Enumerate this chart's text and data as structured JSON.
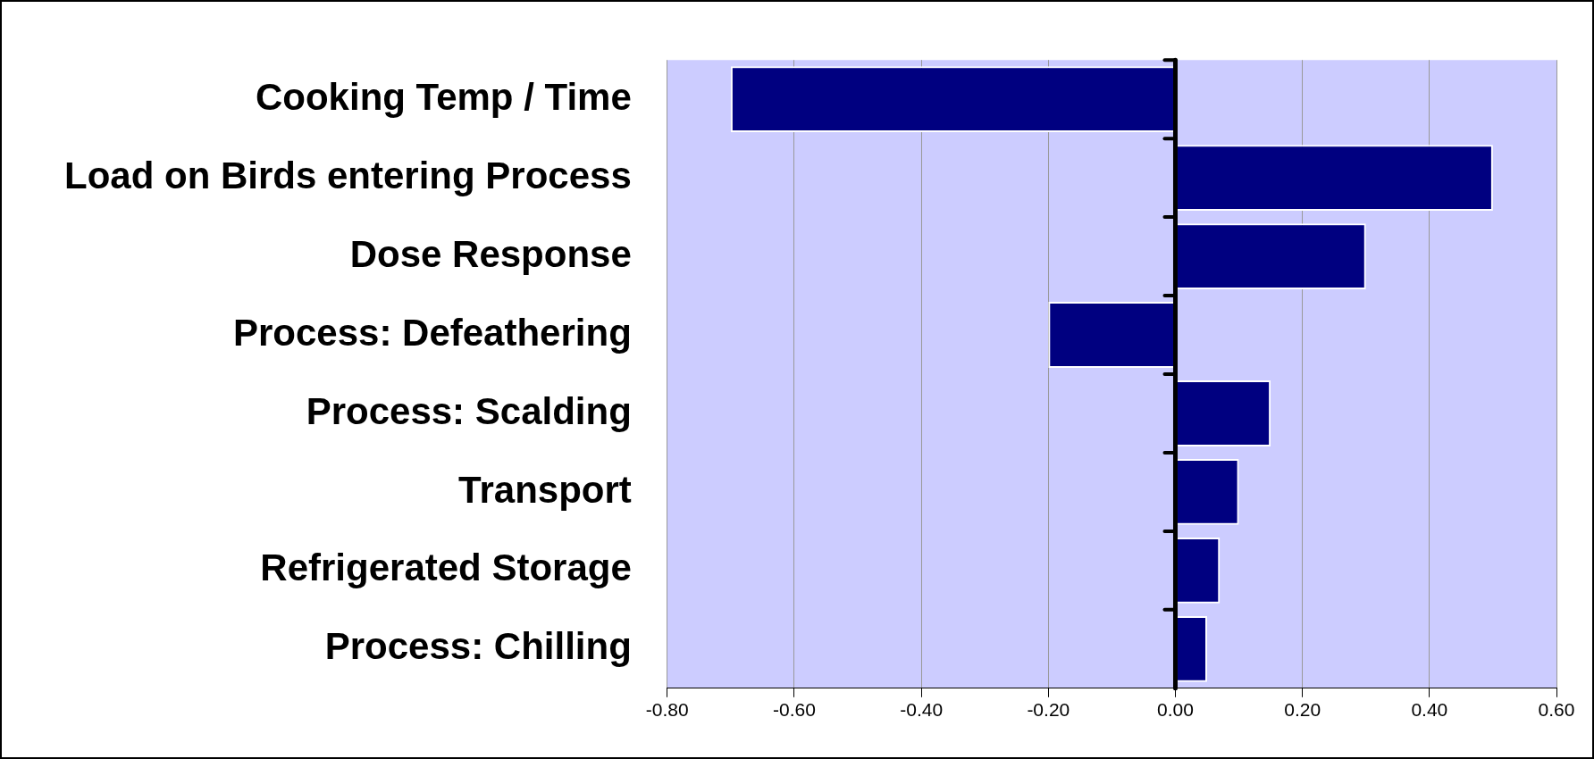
{
  "chart_data": {
    "type": "bar",
    "orientation": "horizontal",
    "categories": [
      "Cooking Temp / Time",
      "Load on Birds entering Process",
      "Dose Response",
      "Process: Defeathering",
      "Process: Scalding",
      "Transport",
      "Refrigerated Storage",
      "Process: Chilling"
    ],
    "values": [
      -0.7,
      0.5,
      0.3,
      -0.2,
      0.15,
      0.1,
      0.07,
      0.05
    ],
    "color": "#000080",
    "xlim": [
      -0.8,
      0.6
    ],
    "xticks": [
      {
        "value": -0.8,
        "label": "-0.80"
      },
      {
        "value": -0.6,
        "label": "-0.60"
      },
      {
        "value": -0.4,
        "label": "-0.40"
      },
      {
        "value": -0.2,
        "label": "-0.20"
      },
      {
        "value": 0,
        "label": "0.00"
      },
      {
        "value": 0.2,
        "label": "0.20"
      },
      {
        "value": 0.4,
        "label": "0.40"
      },
      {
        "value": 0.6,
        "label": "0.60"
      }
    ],
    "grid": "x",
    "legend": false
  }
}
